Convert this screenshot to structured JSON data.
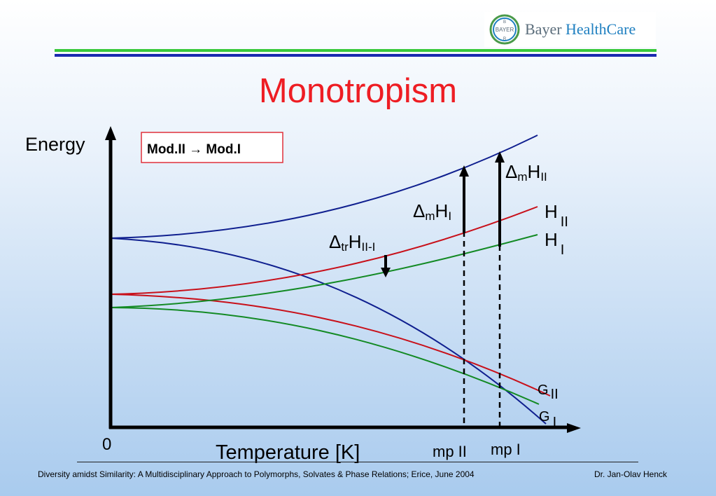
{
  "logo": {
    "badge_text": "BAYER",
    "brand_part1": "Bayer",
    "brand_part2": "HealthCare"
  },
  "title": "Monotropism",
  "diagram": {
    "y_axis_label": "Energy",
    "x_axis_label": "Temperature [K]",
    "origin_label": "0",
    "transition_box": "Mod.II → Mod.I",
    "mp2_label": "mp II",
    "mp1_label": "mp I",
    "curve_labels": {
      "H2": {
        "main": "H",
        "sub": "II"
      },
      "H1": {
        "main": "H",
        "sub": "I"
      },
      "G2": {
        "main": "G",
        "sub": "II"
      },
      "G1": {
        "main": "G",
        "sub": "I"
      }
    },
    "delta_tr": {
      "delta": "Δ",
      "s1": "tr",
      "main": "H",
      "s2": "II-I"
    },
    "delta_m1": {
      "delta": "Δ",
      "s1": "m",
      "main": "H",
      "s2": "I"
    },
    "delta_m2": {
      "delta": "Δ",
      "s1": "m",
      "main": "H",
      "s2": "II"
    },
    "colors": {
      "liquid": "#0f1f8f",
      "mod2": "#c8101a",
      "mod1": "#138a24",
      "axis": "#000000"
    }
  },
  "footer": {
    "left": "Diversity amidst Similarity: A Multidisciplinary Approach to Polymorphs, Solvates & Phase Relations; Erice, June 2004",
    "right": "Dr. Jan-Olav Henck"
  }
}
